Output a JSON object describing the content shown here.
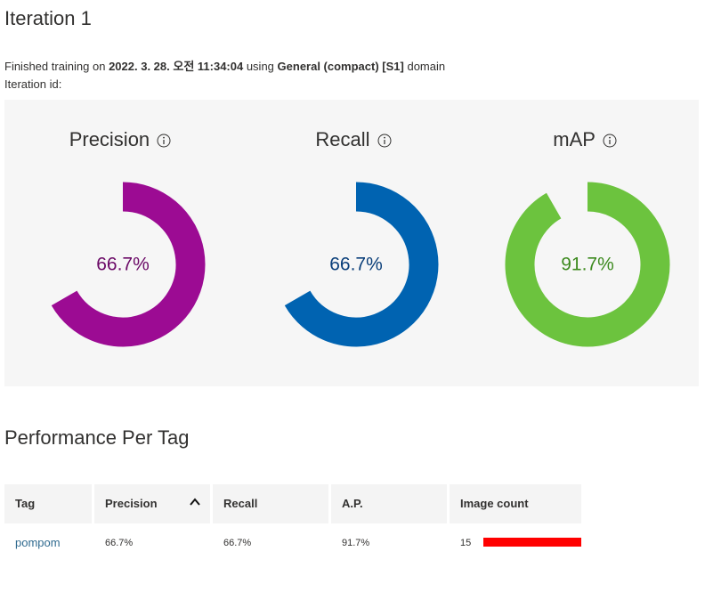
{
  "header": {
    "title": "Iteration 1"
  },
  "training": {
    "prefix": "Finished training on ",
    "date": "2022. 3. 28. 오전 11:34:04",
    "middle": " using ",
    "domain": "General (compact) [S1]",
    "suffix": " domain",
    "iteration_id_label": "Iteration id:"
  },
  "metrics": [
    {
      "label": "Precision",
      "value": 66.7,
      "value_text": "66.7%",
      "color": "#9c0b93",
      "text_color": "#6b0a67",
      "icon": "info-icon"
    },
    {
      "label": "Recall",
      "value": 66.7,
      "value_text": "66.7%",
      "color": "#0063b1",
      "text_color": "#0b3f7a",
      "icon": "info-icon"
    },
    {
      "label": "mAP",
      "value": 91.7,
      "value_text": "91.7%",
      "color": "#6cc33e",
      "text_color": "#3d8a1f",
      "icon": "info-icon"
    }
  ],
  "performance": {
    "title": "Performance Per Tag",
    "columns": [
      "Tag",
      "Precision",
      "Recall",
      "A.P.",
      "Image count"
    ],
    "sort_icon": "chevron-up-icon",
    "rows": [
      {
        "tag": "pompom",
        "precision": "66.7%",
        "recall": "66.7%",
        "ap": "91.7%",
        "image_count": "15",
        "image_count_fraction": 1.0,
        "bar_color": "#ff0000"
      }
    ]
  }
}
